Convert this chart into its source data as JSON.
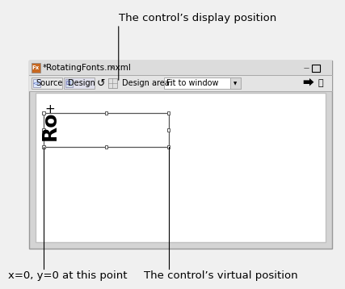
{
  "title_text": "The control’s display position",
  "bottom_left_label": "x=0, y=0 at this point",
  "bottom_right_label": "The control’s virtual position",
  "tab_title": "*RotatingFonts.mxml",
  "bg_color": "#f0f0f0",
  "window_bg": "#d0d0d0",
  "toolbar_bg": "#e8e8e8",
  "canvas_bg": "#ffffff",
  "tab_bg": "#dcdcdc",
  "font_size_annot": 9.5,
  "font_size_ui": 7,
  "font_size_tab": 7.5
}
